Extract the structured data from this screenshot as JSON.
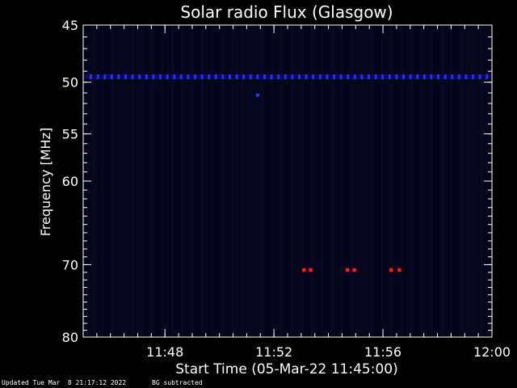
{
  "chart_data": {
    "type": "heatmap",
    "title": "Solar radio Flux (Glasgow)",
    "xlabel": "Start Time (05-Mar-22 11:45:00)",
    "ylabel": "Frequency [MHz]",
    "x_range_minutes": [
      0,
      15
    ],
    "x_ticks": [
      {
        "minute": 3,
        "label": "11:48"
      },
      {
        "minute": 7,
        "label": "11:52"
      },
      {
        "minute": 11,
        "label": "11:56"
      },
      {
        "minute": 15,
        "label": "12:00"
      }
    ],
    "y_scale": "log",
    "ylim": [
      45,
      80
    ],
    "y_ticks": [
      45,
      50,
      55,
      60,
      70,
      80
    ],
    "features": [
      {
        "kind": "persistent-band",
        "frequency": 49.5,
        "color": "#2a2aff"
      },
      {
        "kind": "bright-spots",
        "frequency": 70.7,
        "minutes": [
          8.1,
          8.35,
          9.7,
          9.95,
          11.3,
          11.6
        ],
        "color": "#ff2020"
      },
      {
        "kind": "spot",
        "frequency": 51.2,
        "minutes": [
          6.4
        ],
        "color": "#3030ff"
      }
    ],
    "background_color": "#05051c"
  },
  "footer": {
    "updated": "Updated Tue Mar  8 21:17:12 2022",
    "note": "BG subtracted"
  }
}
